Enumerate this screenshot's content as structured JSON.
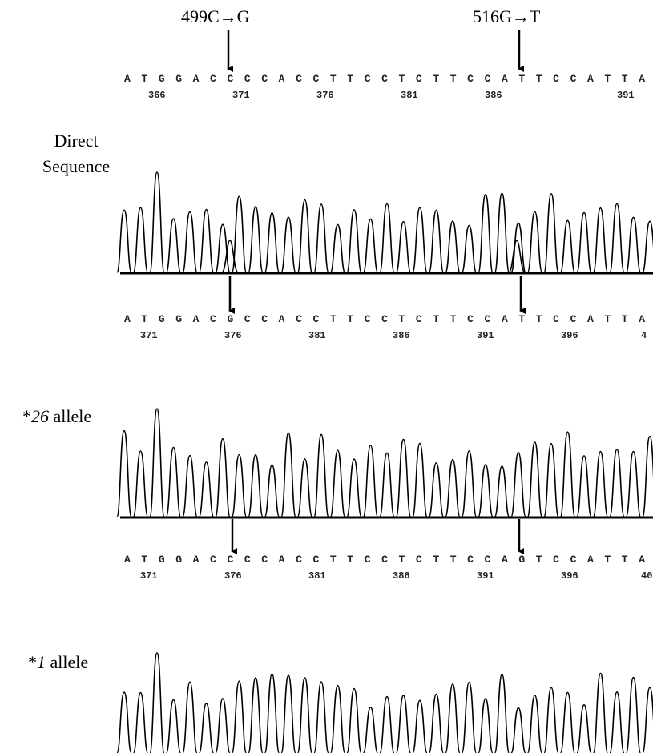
{
  "mutations": [
    "499C→G",
    "516G→T"
  ],
  "reference": {
    "sequence": "ATGGACCCCACCTTCCTCTTCCATTCCATTA",
    "positions": [
      366,
      371,
      376,
      381,
      386,
      391
    ]
  },
  "panels": [
    {
      "label_lines": [
        "Direct",
        "Sequence"
      ],
      "sequence": "ATGGACGCCACCTTCCTCTTCCATTCCATTA",
      "positions": [
        371,
        376,
        381,
        386,
        391,
        396,
        "4"
      ]
    },
    {
      "label": {
        "prefix": "*",
        "number": "26",
        "suffix": " allele"
      },
      "sequence": "ATGGACCCCACCTTCCTCTTCCAGTCCATTA",
      "positions": [
        371,
        376,
        381,
        386,
        391,
        396,
        "40"
      ]
    },
    {
      "label": {
        "prefix": "*",
        "number": "1",
        "suffix": " allele"
      }
    }
  ]
}
